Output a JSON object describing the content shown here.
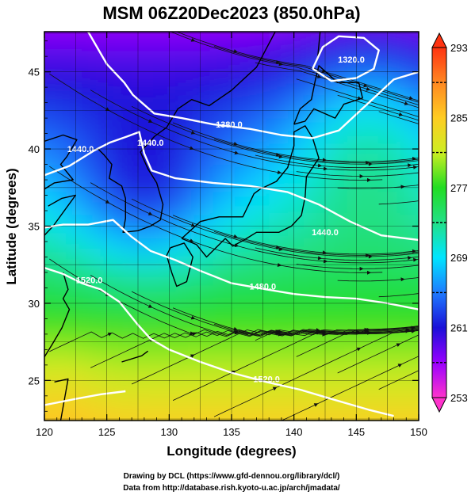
{
  "title": "MSM 06Z20Dec2023 (850.0hPa)",
  "x_axis": {
    "label": "Longitude (degrees)",
    "range": [
      120,
      150
    ],
    "ticks": [
      120,
      125,
      130,
      135,
      140,
      145,
      150
    ]
  },
  "y_axis": {
    "label": "Latitude  (degrees)",
    "range": [
      22.4,
      47.6
    ],
    "ticks": [
      25,
      30,
      35,
      40,
      45
    ]
  },
  "colorbar": {
    "range": [
      253,
      293
    ],
    "tick_labels": [
      "293",
      "285",
      "277",
      "269",
      "261",
      "253"
    ],
    "tick_values": [
      293,
      285,
      277,
      269,
      261,
      253
    ],
    "stops": [
      {
        "v": 253,
        "color": "#ff33cc"
      },
      {
        "v": 257,
        "color": "#9900ff"
      },
      {
        "v": 261,
        "color": "#1a10d8"
      },
      {
        "v": 265,
        "color": "#1e7bff"
      },
      {
        "v": 269,
        "color": "#00e5ff"
      },
      {
        "v": 273,
        "color": "#22e088"
      },
      {
        "v": 277,
        "color": "#22dd22"
      },
      {
        "v": 281,
        "color": "#ccee22"
      },
      {
        "v": 285,
        "color": "#ffcc22"
      },
      {
        "v": 289,
        "color": "#ff8822"
      },
      {
        "v": 293,
        "color": "#ff3311"
      }
    ]
  },
  "contours": {
    "color": "#ffffff",
    "labels": [
      {
        "text": "1320.0",
        "lon": 144.6,
        "lat": 45.6
      },
      {
        "text": "1380.0",
        "lon": 134.8,
        "lat": 41.4
      },
      {
        "text": "1440.0",
        "lon": 128.5,
        "lat": 40.2
      },
      {
        "text": "1440.0",
        "lon": 142.5,
        "lat": 34.4
      },
      {
        "text": "1440.0",
        "lon": 122.9,
        "lat": 39.8
      },
      {
        "text": "1480.0",
        "lon": 137.5,
        "lat": 30.9
      },
      {
        "text": "1520.0",
        "lon": 123.6,
        "lat": 31.3
      },
      {
        "text": "1520.0",
        "lon": 137.8,
        "lat": 24.9
      }
    ]
  },
  "credits": [
    "Drawing by DCL (https://www.gfd-dennou.org/library/dcl/)",
    "Data from http://database.rish.kyoto-u.ac.jp/arch/jmadata/"
  ]
}
